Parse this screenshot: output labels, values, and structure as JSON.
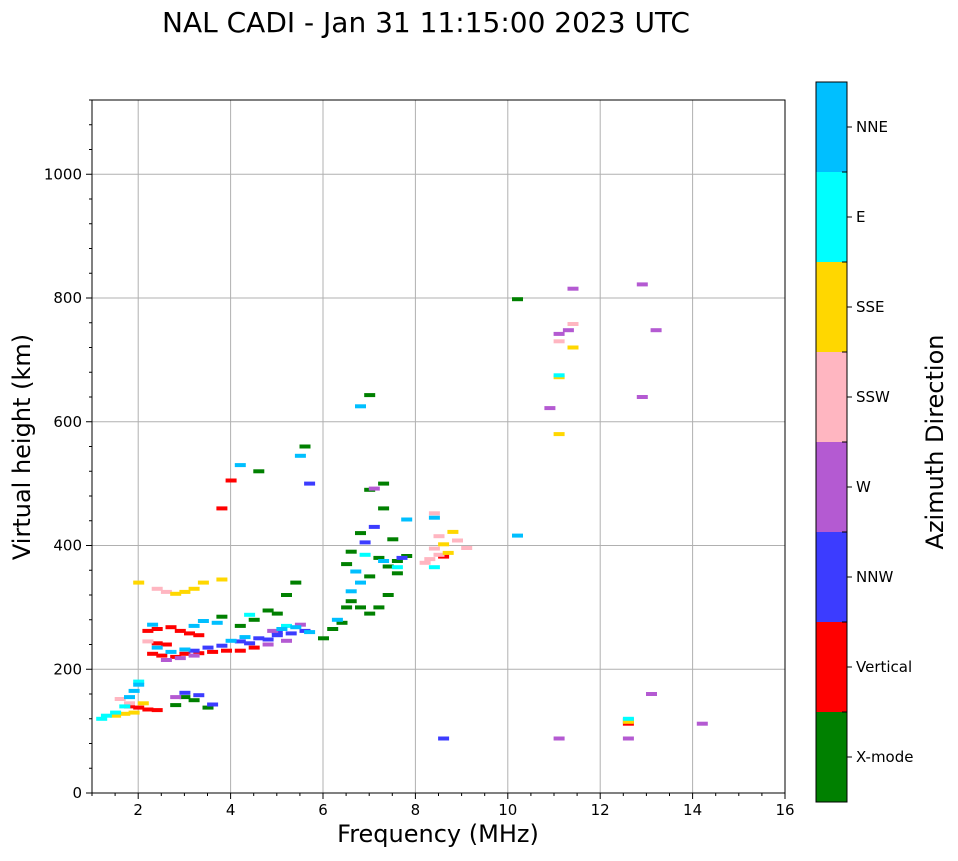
{
  "chart_data": {
    "type": "scatter",
    "title": "NAL CADI - Jan 31 11:15:00 2023 UTC",
    "xlabel": "Frequency (MHz)",
    "ylabel": "Virtual height (km)",
    "xlim": [
      1,
      16
    ],
    "ylim": [
      0,
      1120
    ],
    "xticks": [
      2,
      4,
      6,
      8,
      10,
      12,
      14,
      16
    ],
    "yticks": [
      0,
      200,
      400,
      600,
      800,
      1000
    ],
    "grid": true,
    "colorbar": {
      "label": "Azimuth Direction",
      "categories": [
        "X-mode",
        "Vertical",
        "NNW",
        "W",
        "SSW",
        "SSE",
        "E",
        "NNE"
      ],
      "colors": [
        "#008000",
        "#ff0000",
        "#3c3cff",
        "#b45ad2",
        "#ffb6c1",
        "#ffd700",
        "#00ffff",
        "#00bfff"
      ]
    },
    "series": [
      {
        "name": "X-mode",
        "points": [
          [
            6.0,
            250
          ],
          [
            6.2,
            265
          ],
          [
            6.4,
            275
          ],
          [
            6.5,
            300
          ],
          [
            6.6,
            310
          ],
          [
            6.8,
            300
          ],
          [
            7.0,
            290
          ],
          [
            7.2,
            300
          ],
          [
            7.4,
            320
          ],
          [
            7.0,
            350
          ],
          [
            6.5,
            370
          ],
          [
            7.2,
            380
          ],
          [
            6.6,
            390
          ],
          [
            7.5,
            410
          ],
          [
            6.8,
            420
          ],
          [
            7.3,
            460
          ],
          [
            7.0,
            490
          ],
          [
            7.3,
            500
          ],
          [
            7.8,
            383
          ],
          [
            7.6,
            355
          ],
          [
            5.4,
            340
          ],
          [
            5.2,
            320
          ],
          [
            5.0,
            290
          ],
          [
            4.8,
            295
          ],
          [
            4.5,
            280
          ],
          [
            4.2,
            270
          ],
          [
            3.8,
            285
          ],
          [
            3.2,
            150
          ],
          [
            3.0,
            155
          ],
          [
            2.8,
            142
          ],
          [
            3.5,
            138
          ],
          [
            4.6,
            520
          ],
          [
            5.6,
            560
          ],
          [
            7.6,
            375
          ],
          [
            7.4,
            366
          ],
          [
            10.2,
            798
          ],
          [
            7.0,
            643
          ]
        ]
      },
      {
        "name": "Vertical",
        "points": [
          [
            2.3,
            225
          ],
          [
            2.5,
            222
          ],
          [
            2.8,
            220
          ],
          [
            3.0,
            225
          ],
          [
            3.3,
            226
          ],
          [
            3.6,
            228
          ],
          [
            3.9,
            230
          ],
          [
            4.2,
            230
          ],
          [
            4.5,
            235
          ],
          [
            2.4,
            242
          ],
          [
            2.6,
            240
          ],
          [
            2.2,
            262
          ],
          [
            2.4,
            265
          ],
          [
            2.7,
            268
          ],
          [
            2.9,
            262
          ],
          [
            3.1,
            258
          ],
          [
            3.3,
            255
          ],
          [
            1.8,
            140
          ],
          [
            2.0,
            138
          ],
          [
            2.2,
            135
          ],
          [
            2.4,
            134
          ],
          [
            4.0,
            505
          ],
          [
            3.8,
            460
          ],
          [
            8.6,
            382
          ],
          [
            12.6,
            112
          ]
        ]
      },
      {
        "name": "NNW",
        "points": [
          [
            3.2,
            230
          ],
          [
            3.5,
            235
          ],
          [
            3.8,
            238
          ],
          [
            4.2,
            245
          ],
          [
            4.6,
            250
          ],
          [
            5.0,
            255
          ],
          [
            5.3,
            258
          ],
          [
            5.6,
            262
          ],
          [
            4.4,
            242
          ],
          [
            4.8,
            248
          ],
          [
            3.6,
            143
          ],
          [
            3.3,
            158
          ],
          [
            3.0,
            162
          ],
          [
            5.0,
            260
          ],
          [
            7.1,
            430
          ],
          [
            5.7,
            500
          ],
          [
            7.7,
            380
          ],
          [
            6.9,
            405
          ],
          [
            8.6,
            88
          ]
        ]
      },
      {
        "name": "W",
        "points": [
          [
            2.6,
            215
          ],
          [
            2.9,
            218
          ],
          [
            3.2,
            222
          ],
          [
            4.8,
            240
          ],
          [
            5.2,
            246
          ],
          [
            5.5,
            272
          ],
          [
            4.9,
            262
          ],
          [
            2.8,
            155
          ],
          [
            7.1,
            492
          ],
          [
            10.9,
            622
          ],
          [
            11.1,
            742
          ],
          [
            11.3,
            748
          ],
          [
            12.9,
            822
          ],
          [
            13.2,
            748
          ],
          [
            12.9,
            640
          ],
          [
            13.1,
            160
          ],
          [
            11.4,
            815
          ],
          [
            11.1,
            88
          ],
          [
            12.6,
            88
          ],
          [
            14.2,
            112
          ],
          [
            12.6,
            118
          ]
        ]
      },
      {
        "name": "SSW",
        "points": [
          [
            2.4,
            330
          ],
          [
            2.6,
            325
          ],
          [
            2.2,
            245
          ],
          [
            8.2,
            372
          ],
          [
            8.3,
            378
          ],
          [
            8.5,
            385
          ],
          [
            8.4,
            395
          ],
          [
            8.5,
            415
          ],
          [
            8.4,
            452
          ],
          [
            8.9,
            408
          ],
          [
            9.1,
            396
          ],
          [
            11.1,
            730
          ],
          [
            11.4,
            758
          ],
          [
            1.8,
            145
          ],
          [
            1.6,
            152
          ]
        ]
      },
      {
        "name": "SSE",
        "points": [
          [
            2.0,
            340
          ],
          [
            2.8,
            322
          ],
          [
            3.0,
            325
          ],
          [
            3.2,
            330
          ],
          [
            3.4,
            340
          ],
          [
            3.8,
            345
          ],
          [
            1.5,
            125
          ],
          [
            1.7,
            128
          ],
          [
            1.9,
            130
          ],
          [
            8.7,
            388
          ],
          [
            8.8,
            422
          ],
          [
            8.6,
            402
          ],
          [
            11.1,
            580
          ],
          [
            11.1,
            672
          ],
          [
            11.4,
            720
          ],
          [
            2.1,
            145
          ],
          [
            12.6,
            115
          ]
        ]
      },
      {
        "name": "E",
        "points": [
          [
            1.3,
            125
          ],
          [
            1.5,
            130
          ],
          [
            1.2,
            120
          ],
          [
            2.0,
            180
          ],
          [
            6.9,
            385
          ],
          [
            7.6,
            365
          ],
          [
            5.2,
            270
          ],
          [
            4.4,
            288
          ],
          [
            8.4,
            365
          ],
          [
            11.1,
            675
          ],
          [
            12.6,
            120
          ],
          [
            1.7,
            140
          ]
        ]
      },
      {
        "name": "NNE",
        "points": [
          [
            2.4,
            235
          ],
          [
            2.7,
            228
          ],
          [
            3.0,
            232
          ],
          [
            3.2,
            270
          ],
          [
            3.4,
            278
          ],
          [
            3.7,
            275
          ],
          [
            4.0,
            246
          ],
          [
            4.3,
            252
          ],
          [
            5.1,
            265
          ],
          [
            5.4,
            268
          ],
          [
            5.7,
            260
          ],
          [
            6.6,
            326
          ],
          [
            6.8,
            340
          ],
          [
            6.7,
            358
          ],
          [
            7.8,
            442
          ],
          [
            8.4,
            445
          ],
          [
            10.2,
            416
          ],
          [
            4.2,
            530
          ],
          [
            5.5,
            545
          ],
          [
            6.8,
            625
          ],
          [
            2.3,
            272
          ],
          [
            6.3,
            280
          ],
          [
            7.3,
            375
          ],
          [
            2.0,
            175
          ],
          [
            1.9,
            165
          ],
          [
            1.8,
            155
          ]
        ]
      }
    ]
  }
}
